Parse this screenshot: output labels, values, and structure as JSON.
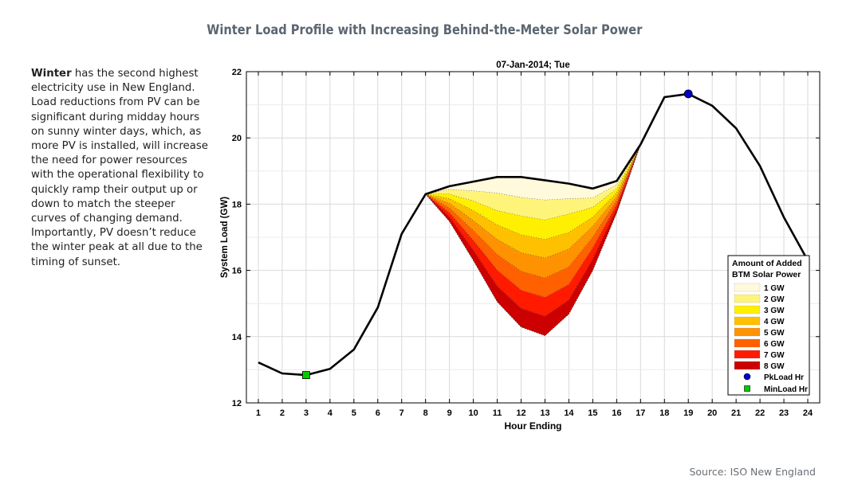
{
  "page": {
    "title": "Winter Load Profile with Increasing Behind-the-Meter Solar Power",
    "intro_bold": "Winter",
    "intro_rest": " has the second highest electricity use in New England. Load reductions from PV can be significant during midday hours on sunny winter days, which, as more PV is installed, will increase the need for power resources with the operational flexibility to quickly ramp their output up or down to match the steeper curves of changing demand. Importantly, PV doesn’t reduce the winter peak at all due to the timing of sunset.",
    "source": "Source: ISO New England"
  },
  "chart_data": {
    "type": "area",
    "title": "07-Jan-2014; Tue",
    "xlabel": "Hour Ending",
    "ylabel": "System Load (GW)",
    "xlim": [
      0.5,
      24.5
    ],
    "ylim": [
      12,
      22
    ],
    "x_ticks": [
      1,
      2,
      3,
      4,
      5,
      6,
      7,
      8,
      9,
      10,
      11,
      12,
      13,
      14,
      15,
      16,
      17,
      18,
      19,
      20,
      21,
      22,
      23,
      24
    ],
    "y_ticks": [
      12,
      14,
      16,
      18,
      20,
      22
    ],
    "grid": true,
    "legend_title": "Amount of Added BTM Solar Power",
    "legend_position": "lower-right",
    "load": {
      "x": [
        1,
        2,
        3,
        4,
        5,
        6,
        7,
        8,
        9,
        10,
        11,
        12,
        13,
        14,
        15,
        16,
        17,
        18,
        19,
        20,
        21,
        22,
        23,
        24
      ],
      "y": [
        13.22,
        12.89,
        12.84,
        13.03,
        13.61,
        14.88,
        17.1,
        18.3,
        18.54,
        18.68,
        18.82,
        18.82,
        18.72,
        18.62,
        18.47,
        18.7,
        19.8,
        21.23,
        21.33,
        20.97,
        20.29,
        19.15,
        17.6,
        16.3
      ]
    },
    "solar_hours": [
      8,
      9,
      10,
      11,
      12,
      13,
      14,
      15,
      16,
      17
    ],
    "series": [
      {
        "name": "1 GW",
        "color": "#fffadc",
        "values": [
          18.3,
          18.44,
          18.4,
          18.33,
          18.2,
          18.12,
          18.16,
          18.18,
          18.58,
          19.8
        ]
      },
      {
        "name": "2 GW",
        "color": "#fff47a",
        "values": [
          18.3,
          18.3,
          18.09,
          17.8,
          17.64,
          17.52,
          17.7,
          17.9,
          18.46,
          19.8
        ]
      },
      {
        "name": "3 GW",
        "color": "#ffef00",
        "values": [
          18.3,
          18.16,
          17.8,
          17.37,
          17.07,
          16.93,
          17.14,
          17.6,
          18.34,
          19.8
        ]
      },
      {
        "name": "4 GW",
        "color": "#ffc000",
        "values": [
          18.3,
          18.02,
          17.5,
          16.93,
          16.53,
          16.37,
          16.64,
          17.33,
          18.22,
          19.8
        ]
      },
      {
        "name": "5 GW",
        "color": "#ff9200",
        "values": [
          18.3,
          17.88,
          17.2,
          16.47,
          15.97,
          15.77,
          16.1,
          17.0,
          18.1,
          19.8
        ]
      },
      {
        "name": "6 GW",
        "color": "#ff6000",
        "values": [
          18.3,
          17.74,
          16.9,
          16.0,
          15.4,
          15.18,
          15.57,
          16.67,
          17.98,
          19.8
        ]
      },
      {
        "name": "7 GW",
        "color": "#ff1a00",
        "values": [
          18.3,
          17.61,
          16.6,
          15.52,
          14.85,
          14.61,
          15.1,
          16.33,
          17.86,
          19.8
        ]
      },
      {
        "name": "8 GW",
        "color": "#cc0000",
        "values": [
          18.3,
          17.48,
          16.3,
          15.05,
          14.29,
          14.03,
          14.68,
          16.0,
          17.74,
          19.8
        ]
      }
    ],
    "markers": [
      {
        "name": "PkLoad Hr",
        "x": 19,
        "y": 21.33,
        "color": "#0000cc",
        "shape": "circle"
      },
      {
        "name": "MinLoad Hr",
        "x": 3,
        "y": 12.84,
        "color": "#00cc00",
        "shape": "square"
      }
    ]
  }
}
